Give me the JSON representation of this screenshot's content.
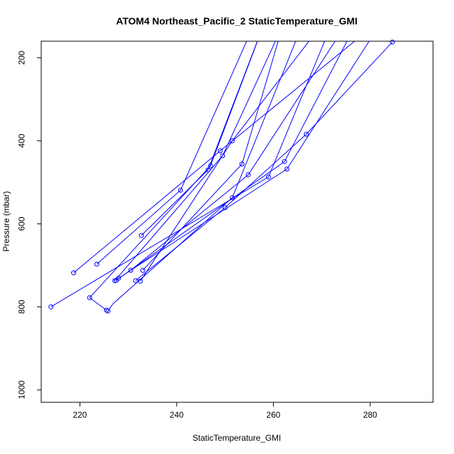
{
  "chart_data": {
    "type": "scatter",
    "title": "ATOM4 Northeast_Pacific_2 StaticTemperature_GMI",
    "xlabel": "StaticTemperature_GMI",
    "ylabel": "Pressure (mbar)",
    "xlim": [
      212,
      293
    ],
    "ylim": [
      1030,
      160
    ],
    "y_reversed": true,
    "x_ticks": [
      "220",
      "240",
      "260",
      "280"
    ],
    "y_ticks": [
      "200",
      "400",
      "600",
      "800",
      "1000"
    ],
    "grid": false,
    "legend": "none",
    "line_color": "#0000ff",
    "series": [
      {
        "points": [
          [
            232.5,
            738
          ],
          [
            251.5,
            400
          ],
          [
            270.0,
            120
          ]
        ],
        "markers": [
          0,
          1
        ]
      },
      {
        "points": [
          [
            225.5,
            808
          ],
          [
            222.0,
            778
          ],
          [
            247.0,
            460
          ],
          [
            258.0,
            120
          ]
        ],
        "markers": [
          0,
          1,
          2
        ]
      },
      {
        "points": [
          [
            214.0,
            800
          ],
          [
            259.0,
            487
          ],
          [
            272.0,
            120
          ]
        ],
        "markers": [
          0,
          1
        ]
      },
      {
        "points": [
          [
            218.7,
            718
          ],
          [
            249.0,
            424
          ],
          [
            281.0,
            120
          ]
        ],
        "markers": [
          0,
          1
        ]
      },
      {
        "points": [
          [
            225.8,
            810
          ],
          [
            226.8,
            793
          ],
          [
            251.5,
            537
          ],
          [
            266.0,
            120
          ]
        ],
        "markers": [
          0,
          2
        ]
      },
      {
        "points": [
          [
            223.5,
            697
          ],
          [
            240.8,
            519
          ],
          [
            256.0,
            120
          ]
        ],
        "markers": [
          0,
          1
        ]
      },
      {
        "points": [
          [
            227.5,
            736
          ],
          [
            262.3,
            450
          ],
          [
            277.0,
            120
          ]
        ],
        "markers": [
          0,
          1
        ]
      },
      {
        "points": [
          [
            233.0,
            712
          ],
          [
            253.5,
            456
          ],
          [
            262.0,
            120
          ]
        ],
        "markers": [
          0,
          1
        ]
      },
      {
        "points": [
          [
            231.5,
            737
          ],
          [
            250.0,
            561
          ],
          [
            266.8,
            384
          ],
          [
            284.6,
            162
          ]
        ],
        "markers": [
          0,
          1,
          2,
          3
        ]
      },
      {
        "points": [
          [
            232.7,
            628
          ],
          [
            246.5,
            470
          ],
          [
            258.0,
            120
          ]
        ],
        "markers": [
          0,
          1
        ]
      },
      {
        "points": [
          [
            227.2,
            737
          ],
          [
            249.5,
            436
          ],
          [
            262.0,
            120
          ]
        ],
        "markers": [
          0,
          1
        ]
      },
      {
        "points": [
          [
            230.5,
            712
          ],
          [
            254.8,
            482
          ],
          [
            275.0,
            120
          ]
        ],
        "markers": [
          0,
          1
        ]
      },
      {
        "points": [
          [
            228.0,
            731
          ],
          [
            262.8,
            468
          ],
          [
            282.0,
            120
          ]
        ],
        "markers": [
          0,
          1
        ]
      }
    ]
  }
}
